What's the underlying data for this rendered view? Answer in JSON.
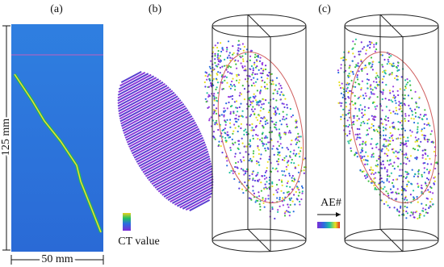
{
  "panels": [
    {
      "label": "(a)"
    },
    {
      "label": "(b)"
    },
    {
      "label": "(c)"
    }
  ],
  "dimensions": {
    "height": "125 mm",
    "width": "50 mm"
  },
  "legends": {
    "ct": "CT value",
    "ae": "AE#"
  }
}
